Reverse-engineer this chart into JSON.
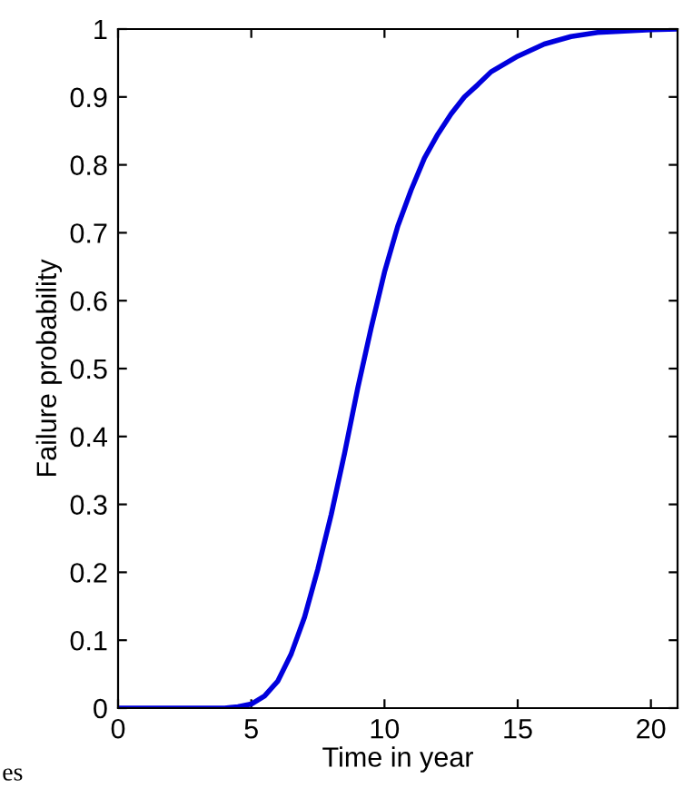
{
  "chart_data": {
    "type": "line",
    "xlabel": "Time in year",
    "ylabel": "Failure probability",
    "x": [
      0,
      4,
      4.5,
      5,
      5.5,
      6,
      6.5,
      7,
      7.5,
      8,
      8.5,
      9,
      9.5,
      10,
      10.5,
      11,
      11.5,
      12,
      12.5,
      13,
      13.5,
      14,
      15,
      16,
      17,
      18,
      19,
      20,
      21
    ],
    "series": [
      {
        "color": "#0000dd",
        "values": [
          0,
          0,
          0.002,
          0.006,
          0.018,
          0.04,
          0.08,
          0.134,
          0.205,
          0.285,
          0.375,
          0.472,
          0.56,
          0.642,
          0.71,
          0.763,
          0.81,
          0.845,
          0.875,
          0.9,
          0.918,
          0.937,
          0.96,
          0.978,
          0.989,
          0.995,
          0.997,
          0.999,
          1.0
        ]
      }
    ],
    "xlim": [
      0,
      21
    ],
    "ylim": [
      0,
      1
    ],
    "xticks": [
      0,
      5,
      10,
      15,
      20
    ],
    "yticks": [
      0,
      0.1,
      0.2,
      0.3,
      0.4,
      0.5,
      0.6,
      0.7,
      0.8,
      0.9,
      1
    ],
    "grid": false,
    "legend": false,
    "marker": "none",
    "line_style": "solid",
    "annotations": [
      "es"
    ]
  }
}
